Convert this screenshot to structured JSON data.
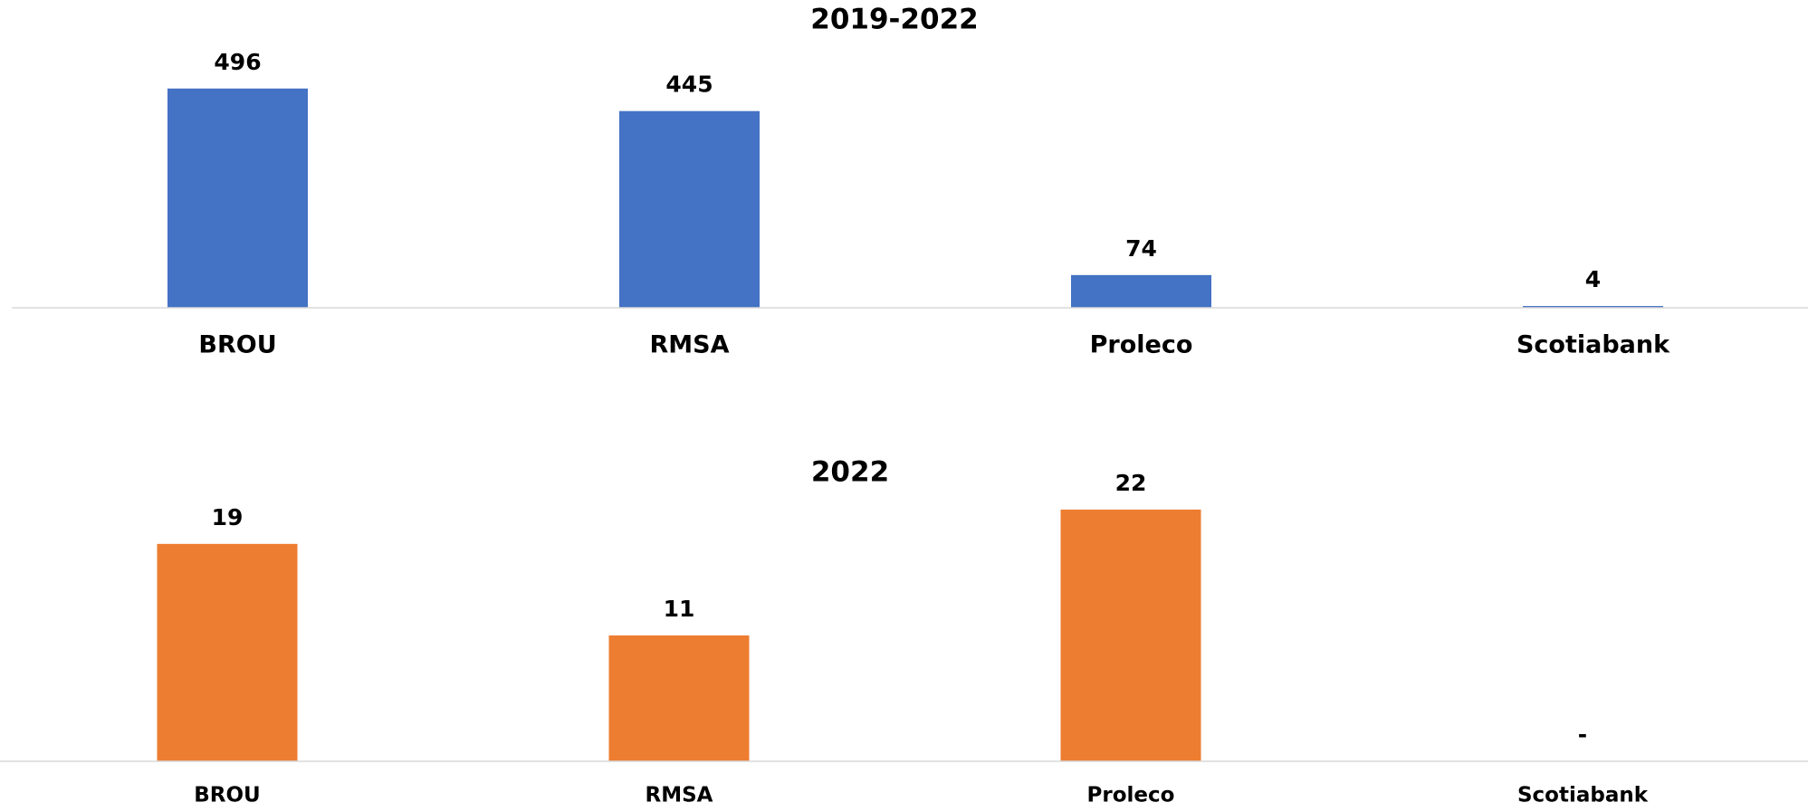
{
  "chart_data": [
    {
      "type": "bar",
      "title": "2019-2022",
      "categories": [
        "BROU",
        "RMSA",
        "Proleco",
        "Scotiabank"
      ],
      "values": [
        496,
        445,
        74,
        4
      ],
      "color": "#4472c4",
      "ylim": [
        0,
        600
      ]
    },
    {
      "type": "bar",
      "title": "2022",
      "categories": [
        "BROU",
        "RMSA",
        "Proleco",
        "Scotiabank"
      ],
      "values": [
        19,
        11,
        22,
        0
      ],
      "value_labels": [
        "19",
        "11",
        "22",
        "-"
      ],
      "color": "#ed7d31",
      "ylim": [
        0,
        25
      ]
    }
  ]
}
